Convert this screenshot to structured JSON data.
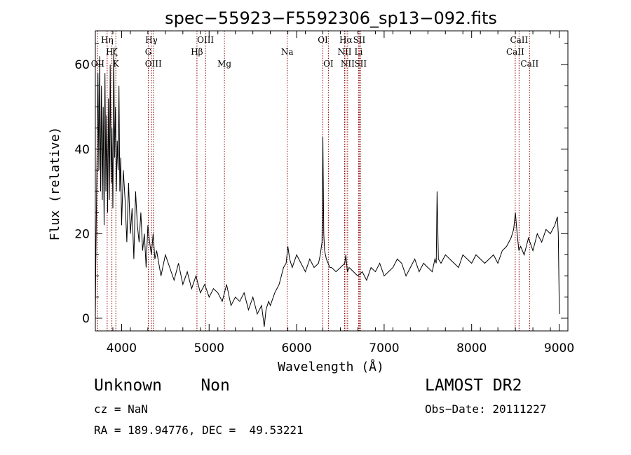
{
  "chart_data": {
    "type": "line",
    "title": "spec−55923−F5592306_sp13−092.fits",
    "xlabel": "Wavelength (Å)",
    "ylabel": "Flux (relative)",
    "xlim": [
      3700,
      9100
    ],
    "ylim": [
      -3,
      68
    ],
    "x_ticks": [
      4000,
      5000,
      6000,
      7000,
      8000,
      9000
    ],
    "y_ticks": [
      0,
      20,
      40,
      60
    ],
    "grid": false,
    "legend": "none",
    "line_color": "#000000",
    "marker_color": "#8b0000",
    "spectrum": {
      "x": [
        3700,
        3705,
        3712,
        3720,
        3730,
        3740,
        3750,
        3760,
        3770,
        3780,
        3790,
        3800,
        3810,
        3820,
        3830,
        3840,
        3850,
        3860,
        3870,
        3880,
        3890,
        3900,
        3910,
        3920,
        3930,
        3940,
        3950,
        3960,
        3970,
        3980,
        3990,
        4000,
        4020,
        4040,
        4060,
        4080,
        4100,
        4120,
        4140,
        4160,
        4180,
        4200,
        4220,
        4240,
        4260,
        4280,
        4300,
        4320,
        4340,
        4360,
        4380,
        4400,
        4450,
        4500,
        4550,
        4600,
        4650,
        4700,
        4750,
        4800,
        4850,
        4900,
        4950,
        5000,
        5050,
        5100,
        5150,
        5200,
        5250,
        5300,
        5350,
        5400,
        5450,
        5500,
        5550,
        5600,
        5630,
        5650,
        5680,
        5700,
        5750,
        5800,
        5850,
        5880,
        5900,
        5920,
        5950,
        6000,
        6050,
        6100,
        6150,
        6200,
        6250,
        6270,
        6290,
        6300,
        6310,
        6320,
        6340,
        6360,
        6380,
        6400,
        6450,
        6500,
        6550,
        6563,
        6580,
        6600,
        6650,
        6700,
        6750,
        6800,
        6850,
        6900,
        6950,
        7000,
        7050,
        7100,
        7150,
        7200,
        7250,
        7300,
        7350,
        7400,
        7450,
        7500,
        7550,
        7580,
        7595,
        7605,
        7620,
        7650,
        7700,
        7750,
        7800,
        7850,
        7900,
        7950,
        8000,
        8050,
        8100,
        8150,
        8200,
        8250,
        8300,
        8350,
        8400,
        8450,
        8480,
        8500,
        8520,
        8540,
        8560,
        8600,
        8650,
        8700,
        8750,
        8800,
        8850,
        8900,
        8950,
        8980,
        8990,
        9000,
        9005
      ],
      "y": [
        0,
        12,
        25,
        40,
        58,
        35,
        62,
        30,
        55,
        28,
        50,
        22,
        58,
        30,
        48,
        25,
        52,
        28,
        60,
        32,
        45,
        26,
        64,
        38,
        50,
        30,
        42,
        35,
        55,
        30,
        38,
        22,
        35,
        28,
        18,
        32,
        20,
        26,
        14,
        30,
        22,
        18,
        25,
        16,
        20,
        12,
        22,
        18,
        15,
        20,
        14,
        16,
        10,
        15,
        12,
        9,
        13,
        8,
        11,
        7,
        10,
        6,
        8,
        5,
        7,
        6,
        4,
        8,
        3,
        5,
        4,
        6,
        2,
        5,
        1,
        3,
        -2,
        2,
        4,
        3,
        6,
        8,
        12,
        13,
        17,
        14,
        12,
        15,
        13,
        11,
        14,
        12,
        13,
        15,
        18,
        43,
        20,
        16,
        14,
        13,
        12,
        12,
        11,
        12,
        13,
        15,
        11,
        12,
        11,
        10,
        11,
        9,
        12,
        11,
        13,
        10,
        11,
        12,
        14,
        13,
        10,
        12,
        14,
        11,
        13,
        12,
        11,
        14,
        13,
        30,
        14,
        13,
        15,
        14,
        13,
        12,
        15,
        14,
        13,
        15,
        14,
        13,
        14,
        15,
        13,
        16,
        17,
        19,
        21,
        25,
        20,
        16,
        17,
        15,
        19,
        16,
        20,
        18,
        21,
        20,
        22,
        24,
        20,
        5,
        1
      ]
    },
    "lines": [
      {
        "label": "Hη",
        "x": 3835,
        "row": 0
      },
      {
        "label": "Hζ",
        "x": 3889,
        "row": 1
      },
      {
        "label": "OII",
        "x": 3727,
        "row": 2
      },
      {
        "label": "K",
        "x": 3934,
        "row": 2
      },
      {
        "label": "Hγ",
        "x": 4341,
        "row": 0
      },
      {
        "label": "G",
        "x": 4305,
        "row": 1
      },
      {
        "label": "OIII",
        "x": 4363,
        "row": 2
      },
      {
        "label": "OIII",
        "x": 4959,
        "row": 0
      },
      {
        "label": "Hβ",
        "x": 4861,
        "row": 1
      },
      {
        "label": "Mg",
        "x": 5175,
        "row": 2
      },
      {
        "label": "Na",
        "x": 5893,
        "row": 1
      },
      {
        "label": "OI",
        "x": 6300,
        "row": 0
      },
      {
        "label": "OI",
        "x": 6363,
        "row": 2
      },
      {
        "label": "Hα",
        "x": 6563,
        "row": 0
      },
      {
        "label": "SII",
        "x": 6716,
        "row": 0
      },
      {
        "label": "NII",
        "x": 6548,
        "row": 1
      },
      {
        "label": "Li",
        "x": 6708,
        "row": 1
      },
      {
        "label": "NII",
        "x": 6583,
        "row": 2
      },
      {
        "label": "SII",
        "x": 6731,
        "row": 2
      },
      {
        "label": "CaII",
        "x": 8542,
        "row": 0
      },
      {
        "label": "CaII",
        "x": 8498,
        "row": 1
      },
      {
        "label": "CaII",
        "x": 8662,
        "row": 2
      }
    ]
  },
  "info": {
    "object_class": "Unknown    Non",
    "survey": "LAMOST DR2",
    "redshift": "cz = NaN",
    "obs_date": "Obs−Date: 20111227",
    "coords": "RA = 189.94776, DEC =  49.53221"
  }
}
